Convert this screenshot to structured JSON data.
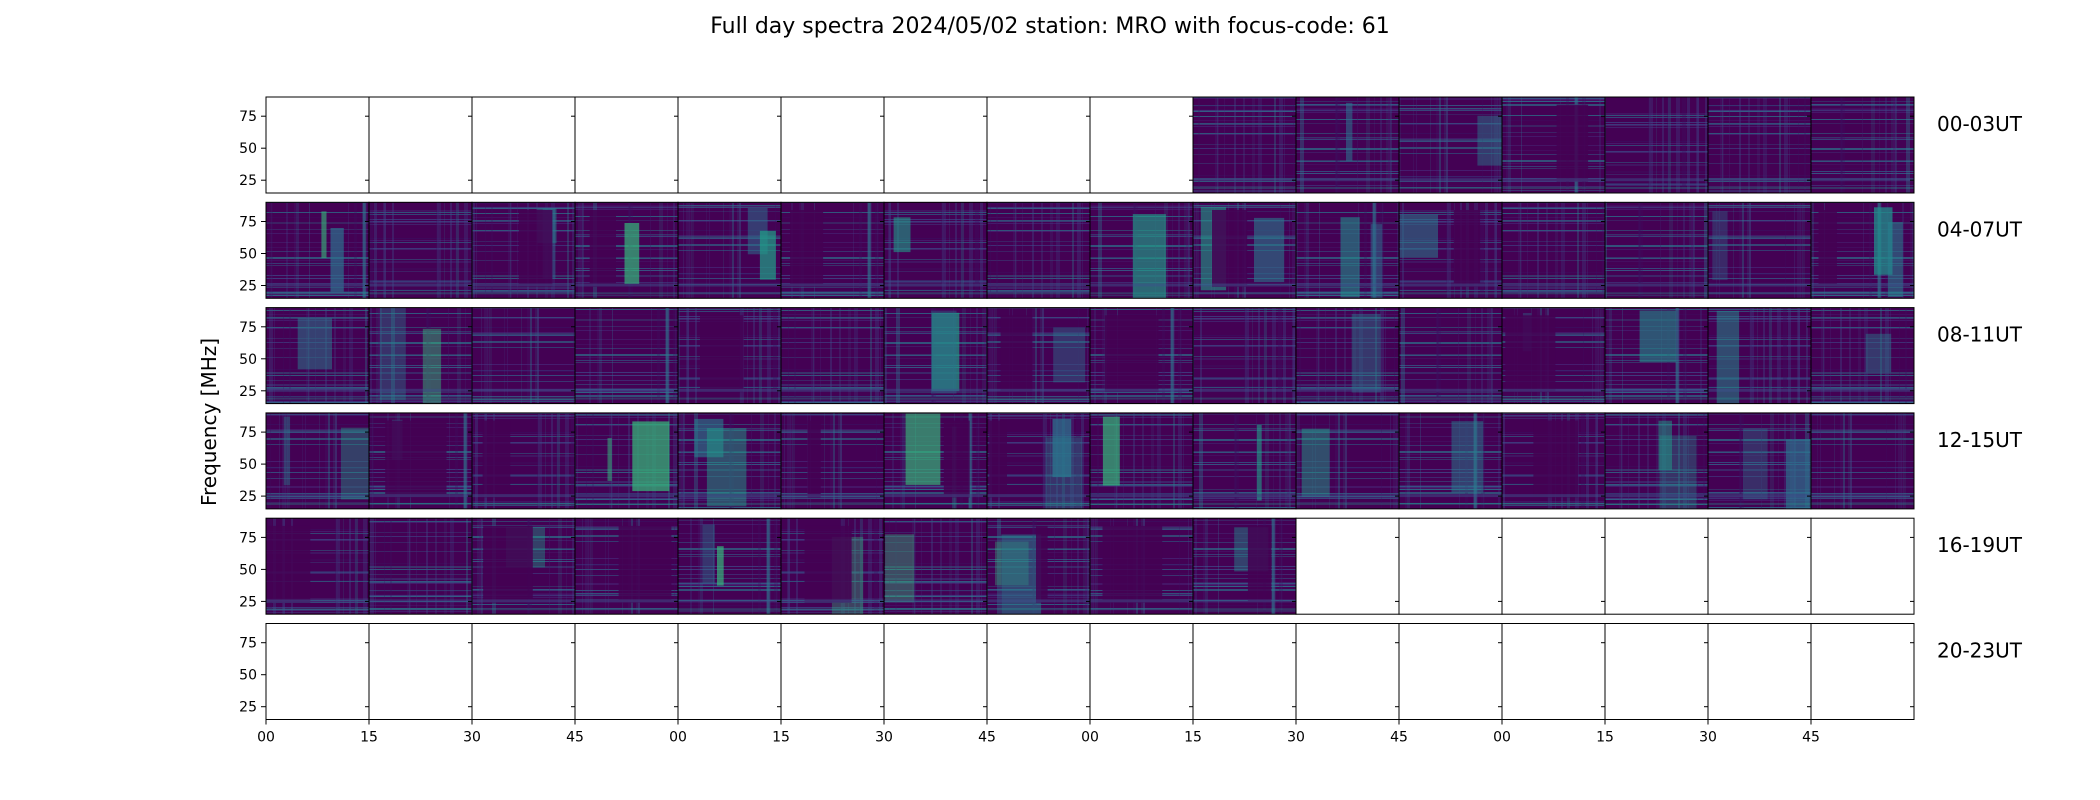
{
  "chart_data": {
    "type": "heatmap",
    "title": "Full day spectra 2024/05/02 station: MRO with focus-code: 61",
    "ylabel": "Frequency [MHz]",
    "xlabel": "",
    "yticks": [
      "25",
      "50",
      "75"
    ],
    "ylim": [
      15,
      90
    ],
    "xticks": [
      "00",
      "15",
      "30",
      "45",
      "00",
      "15",
      "30",
      "45",
      "00",
      "15",
      "30",
      "45",
      "00",
      "15",
      "30",
      "45"
    ],
    "panels_per_row": 16,
    "rows": [
      {
        "label": "00-03UT",
        "available": [
          0,
          0,
          0,
          0,
          0,
          0,
          0,
          0,
          0,
          1,
          1,
          1,
          1,
          1,
          1,
          1
        ]
      },
      {
        "label": "04-07UT",
        "available": [
          1,
          1,
          1,
          1,
          1,
          1,
          1,
          1,
          1,
          1,
          1,
          1,
          1,
          1,
          1,
          1
        ]
      },
      {
        "label": "08-11UT",
        "available": [
          1,
          1,
          1,
          1,
          1,
          1,
          1,
          1,
          1,
          1,
          1,
          1,
          1,
          1,
          1,
          1
        ]
      },
      {
        "label": "12-15UT",
        "available": [
          1,
          1,
          1,
          1,
          1,
          1,
          1,
          1,
          1,
          1,
          1,
          1,
          1,
          1,
          1,
          1
        ]
      },
      {
        "label": "16-19UT",
        "available": [
          1,
          1,
          1,
          1,
          1,
          1,
          1,
          1,
          1,
          1,
          0,
          0,
          0,
          0,
          0,
          0
        ]
      },
      {
        "label": "20-23UT",
        "available": [
          0,
          0,
          0,
          0,
          0,
          0,
          0,
          0,
          0,
          0,
          0,
          0,
          0,
          0,
          0,
          0
        ]
      }
    ],
    "colormap": {
      "low": "#440154",
      "mid": "#3b528b",
      "high": "#21918c",
      "peak": "#5ec962"
    }
  }
}
